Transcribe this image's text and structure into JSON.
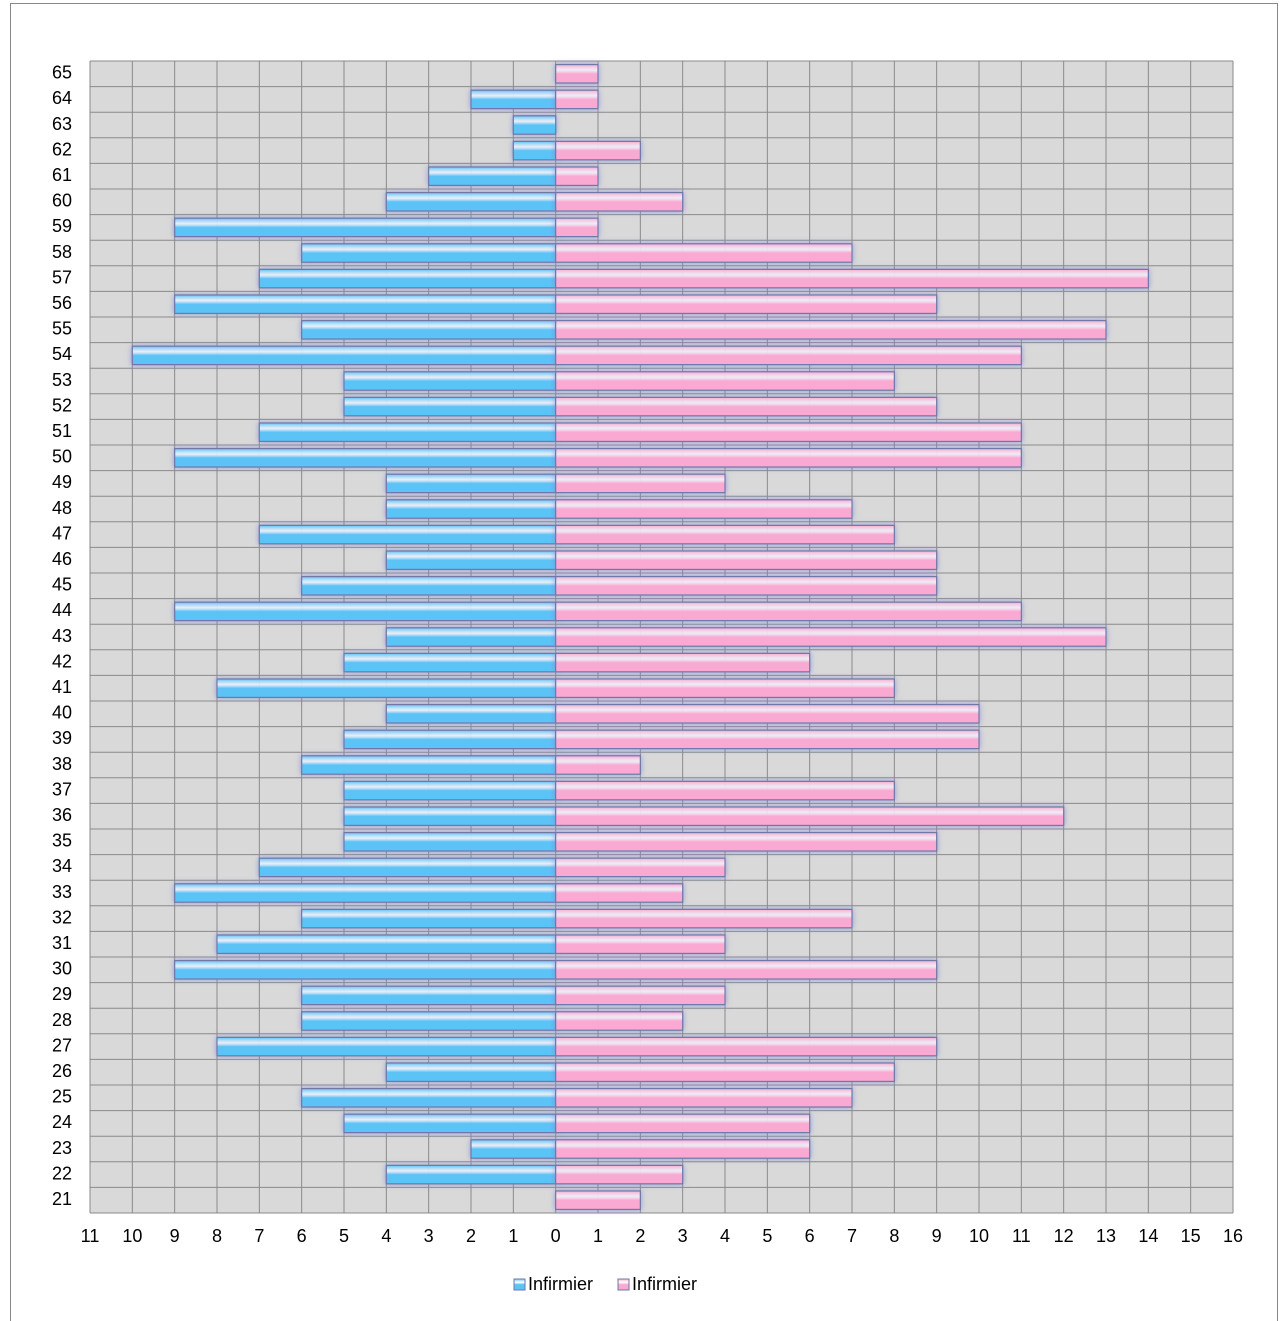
{
  "chart_data": {
    "type": "pyramid",
    "categories": [
      "21",
      "22",
      "23",
      "24",
      "25",
      "26",
      "27",
      "28",
      "29",
      "30",
      "31",
      "32",
      "33",
      "34",
      "35",
      "36",
      "37",
      "38",
      "39",
      "40",
      "41",
      "42",
      "43",
      "44",
      "45",
      "46",
      "47",
      "48",
      "49",
      "50",
      "51",
      "52",
      "53",
      "54",
      "55",
      "56",
      "57",
      "58",
      "59",
      "60",
      "61",
      "62",
      "63",
      "64",
      "65"
    ],
    "series": [
      {
        "name": "Infirmier",
        "color": "#5cc3f7",
        "values": [
          0,
          -4,
          -2,
          -5,
          -6,
          -4,
          -8,
          -6,
          -6,
          -9,
          -8,
          -6,
          -9,
          -7,
          -5,
          -5,
          -5,
          -6,
          -5,
          -4,
          -8,
          -5,
          -4,
          -9,
          -6,
          -4,
          -7,
          -4,
          -4,
          -9,
          -7,
          -5,
          -5,
          -10,
          -6,
          -9,
          -7,
          -6,
          -9,
          -4,
          -3,
          -1,
          -1,
          -2,
          0
        ]
      },
      {
        "name": "Infirmier",
        "color": "#f9a9d2",
        "values": [
          2,
          3,
          6,
          6,
          7,
          8,
          9,
          3,
          4,
          9,
          4,
          7,
          3,
          4,
          9,
          12,
          8,
          2,
          10,
          10,
          8,
          6,
          13,
          11,
          9,
          9,
          8,
          7,
          4,
          11,
          11,
          9,
          8,
          11,
          13,
          9,
          14,
          7,
          1,
          3,
          1,
          2,
          0,
          1,
          1
        ]
      }
    ],
    "xlim": [
      -11,
      16
    ],
    "xticks": [
      {
        "value": -11,
        "label": "11"
      },
      {
        "value": -10,
        "label": "10"
      },
      {
        "value": -9,
        "label": "9"
      },
      {
        "value": -8,
        "label": "8"
      },
      {
        "value": -7,
        "label": "7"
      },
      {
        "value": -6,
        "label": "6"
      },
      {
        "value": -5,
        "label": "5"
      },
      {
        "value": -4,
        "label": "4"
      },
      {
        "value": -3,
        "label": "3"
      },
      {
        "value": -2,
        "label": "2"
      },
      {
        "value": -1,
        "label": "1"
      },
      0,
      1,
      2,
      3,
      4,
      5,
      6,
      7,
      8,
      9,
      10,
      11,
      12,
      13,
      14,
      15,
      16
    ],
    "grid": true,
    "legend": "bottom"
  }
}
